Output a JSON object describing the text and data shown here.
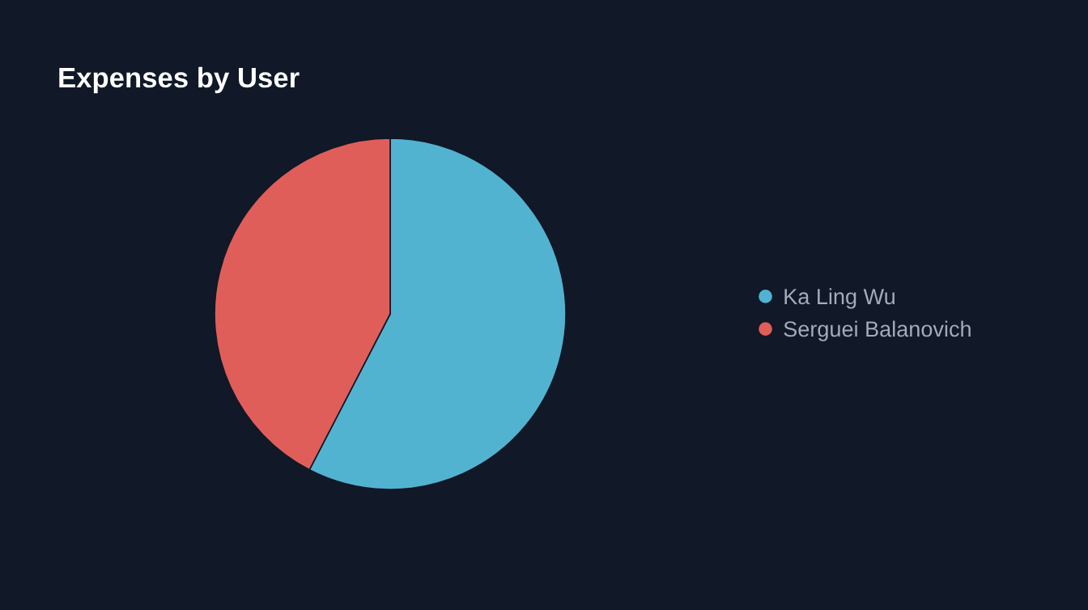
{
  "chart_data": {
    "type": "pie",
    "title": "Expenses by User",
    "categories": [
      "Ka Ling Wu",
      "Serguei Balanovich"
    ],
    "values": [
      57.6,
      42.4
    ],
    "colors": [
      "#52b3d1",
      "#e05e5a"
    ],
    "legend": "right"
  }
}
